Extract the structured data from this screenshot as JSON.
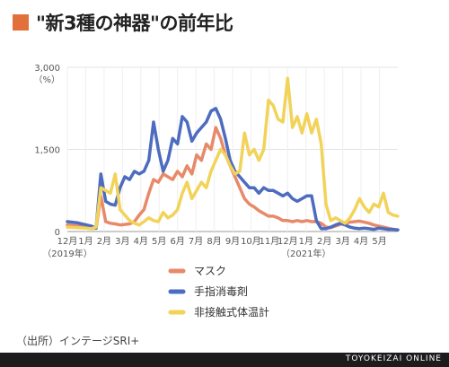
{
  "header": {
    "title": "\"新3種の神器\"の前年比"
  },
  "chart_data": {
    "type": "line",
    "ylim": [
      0,
      3000
    ],
    "yticks": [
      "0",
      "1,500",
      "3,000"
    ],
    "yunit": "（%）",
    "xticks": [
      "12月",
      "1月",
      "2月",
      "3月",
      "4月",
      "5月",
      "6月",
      "7月",
      "8月",
      "9月",
      "10月",
      "11月",
      "12月",
      "1月",
      "2月",
      "3月",
      "4月",
      "5月"
    ],
    "year_labels": [
      "（2019年）",
      "（2021年）"
    ],
    "series": [
      {
        "name": "マスク",
        "color": "#e8896a",
        "values": [
          120,
          110,
          100,
          90,
          70,
          50,
          60,
          650,
          180,
          150,
          140,
          120,
          130,
          140,
          180,
          300,
          400,
          700,
          950,
          900,
          1050,
          1000,
          950,
          1100,
          1000,
          1200,
          1050,
          1400,
          1300,
          1600,
          1500,
          1900,
          1700,
          1400,
          1200,
          1000,
          800,
          600,
          500,
          450,
          380,
          330,
          280,
          280,
          250,
          200,
          200,
          180,
          200,
          180,
          200,
          180,
          180,
          150,
          80,
          70,
          100,
          130,
          150,
          170,
          180,
          190,
          170,
          150,
          120,
          100,
          80,
          60,
          40,
          30
        ]
      },
      {
        "name": "手指消毒剤",
        "color": "#4d6cc0",
        "values": [
          180,
          170,
          160,
          140,
          120,
          100,
          60,
          1050,
          550,
          500,
          480,
          800,
          1000,
          950,
          1100,
          1050,
          1100,
          1300,
          2000,
          1500,
          1100,
          1300,
          1700,
          1600,
          2100,
          2000,
          1650,
          1800,
          1900,
          2000,
          2200,
          2250,
          2050,
          1700,
          1300,
          1100,
          1000,
          900,
          800,
          800,
          700,
          800,
          750,
          750,
          700,
          650,
          700,
          600,
          550,
          600,
          650,
          650,
          200,
          50,
          50,
          80,
          120,
          150,
          120,
          80,
          60,
          50,
          60,
          50,
          40,
          60,
          50,
          40,
          40,
          30
        ]
      },
      {
        "name": "非接触式体温計",
        "color": "#f2d35a",
        "values": [
          80,
          75,
          70,
          65,
          60,
          50,
          80,
          800,
          750,
          700,
          1050,
          400,
          300,
          200,
          150,
          120,
          180,
          250,
          200,
          180,
          350,
          250,
          300,
          400,
          700,
          900,
          600,
          750,
          900,
          800,
          1100,
          1300,
          1500,
          1400,
          1200,
          1050,
          1100,
          1800,
          1400,
          1500,
          1300,
          1500,
          2400,
          2300,
          2050,
          2000,
          2800,
          1900,
          2100,
          1800,
          2150,
          1800,
          2050,
          1600,
          500,
          200,
          250,
          200,
          150,
          250,
          400,
          600,
          450,
          350,
          500,
          450,
          700,
          350,
          300,
          280
        ]
      }
    ]
  },
  "source": "（出所）インテージSRI+",
  "footer": {
    "brand": "TOYOKEIZAI ONLINE"
  }
}
